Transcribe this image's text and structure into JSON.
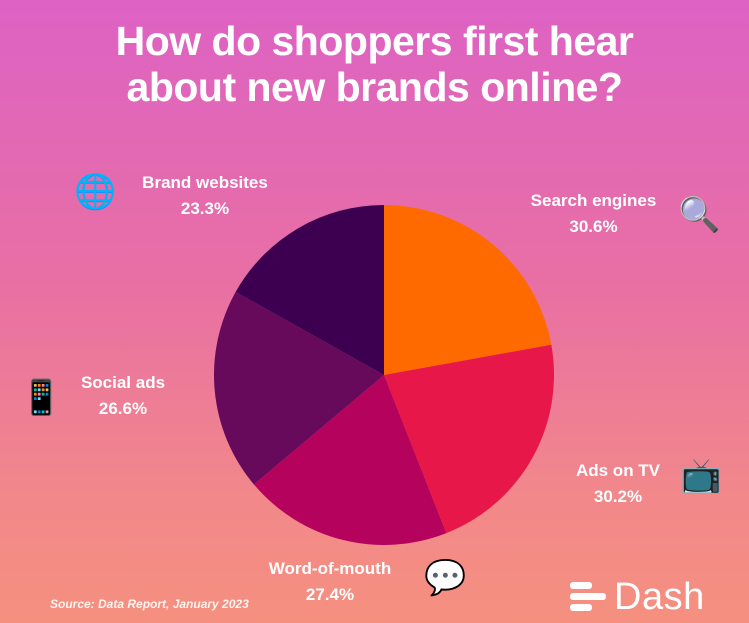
{
  "title_lines": [
    "How do shoppers first hear",
    "about new brands online?"
  ],
  "chart_data": {
    "type": "pie",
    "title": "How do shoppers first hear about new brands online?",
    "slices": [
      {
        "label": "Search engines",
        "value": 30.6,
        "value_label": "30.6%",
        "color": "#ff6a00",
        "icon": "magnifying-glass-icon"
      },
      {
        "label": "Ads on TV",
        "value": 30.2,
        "value_label": "30.2%",
        "color": "#e8174a",
        "icon": "television-icon"
      },
      {
        "label": "Word-of-mouth",
        "value": 27.4,
        "value_label": "27.4%",
        "color": "#b5025d",
        "icon": "speech-bubble-icon"
      },
      {
        "label": "Social ads",
        "value": 26.6,
        "value_label": "26.6%",
        "color": "#680a5c",
        "icon": "mobile-phone-icon"
      },
      {
        "label": "Brand websites",
        "value": 23.3,
        "value_label": "23.3%",
        "color": "#3d0050",
        "icon": "globe-icon"
      }
    ],
    "start_angle": "12 o'clock, clockwise"
  },
  "source": "Source: Data Report, January 2023",
  "brand": "Dash",
  "icons": {
    "globe": "🌐",
    "magnifier": "🔍",
    "phone": "📱",
    "tv": "📺",
    "speech": "💬"
  }
}
